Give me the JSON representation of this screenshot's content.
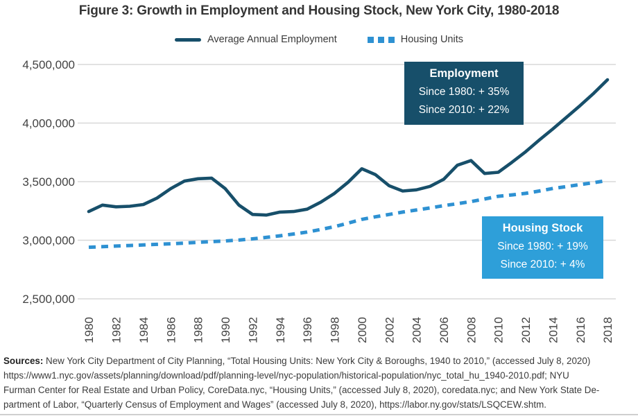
{
  "figure_title": "Figure 3: Growth in Employment and Housing Stock, New York City, 1980-2018",
  "chart_data": {
    "type": "line",
    "title": "Figure 3: Growth in Employment and Housing Stock, New York City, 1980-2018",
    "x": [
      1980,
      1981,
      1982,
      1983,
      1984,
      1985,
      1986,
      1987,
      1988,
      1989,
      1990,
      1991,
      1992,
      1993,
      1994,
      1995,
      1996,
      1997,
      1998,
      1999,
      2000,
      2001,
      2002,
      2003,
      2004,
      2005,
      2006,
      2007,
      2008,
      2009,
      2010,
      2011,
      2012,
      2013,
      2014,
      2015,
      2016,
      2017,
      2018
    ],
    "series": [
      {
        "name": "Average Annual Employment",
        "style": "solid",
        "color": "#174F6A",
        "values": [
          3245000,
          3300000,
          3285000,
          3290000,
          3305000,
          3360000,
          3440000,
          3505000,
          3525000,
          3530000,
          3440000,
          3300000,
          3220000,
          3215000,
          3240000,
          3245000,
          3265000,
          3325000,
          3400000,
          3495000,
          3610000,
          3560000,
          3465000,
          3420000,
          3430000,
          3460000,
          3520000,
          3640000,
          3680000,
          3570000,
          3580000,
          3665000,
          3755000,
          3855000,
          3950000,
          4050000,
          4150000,
          4255000,
          4370000
        ]
      },
      {
        "name": "Housing Units",
        "style": "dashed",
        "color": "#2E91D2",
        "values": [
          2940000,
          2945000,
          2950000,
          2955000,
          2960000,
          2965000,
          2970000,
          2976000,
          2982000,
          2988000,
          2994000,
          3002000,
          3012000,
          3024000,
          3038000,
          3053000,
          3070000,
          3092000,
          3116000,
          3146000,
          3178000,
          3200000,
          3220000,
          3240000,
          3258000,
          3276000,
          3295000,
          3312000,
          3330000,
          3352000,
          3375000,
          3387000,
          3400000,
          3420000,
          3442000,
          3458000,
          3475000,
          3492000,
          3510000
        ]
      }
    ],
    "xlabel": "",
    "ylabel": "",
    "ylim": [
      2500000,
      4500000
    ],
    "y_ticks": [
      "2,500,000",
      "3,000,000",
      "3,500,000",
      "4,000,000",
      "4,500,000"
    ],
    "x_tick_labels": [
      "1980",
      "1982",
      "1984",
      "1986",
      "1988",
      "1990",
      "1992",
      "1994",
      "1996",
      "1998",
      "2000",
      "2002",
      "2004",
      "2006",
      "2008",
      "2010",
      "2012",
      "2014",
      "2016",
      "2018"
    ],
    "grid": "horizontal",
    "grid_color": "#D8D8D8",
    "legend_position": "top",
    "annotations": {
      "employment": {
        "title": "Employment",
        "line1": "Since 1980: + 35%",
        "line2": "Since 2010: + 22%",
        "bg": "#174F6A"
      },
      "housing_stock": {
        "title": "Housing Stock",
        "line1": "Since 1980: + 19%",
        "line2": "Since 2010: + 4%",
        "bg": "#2E9FD9"
      }
    }
  },
  "sources": {
    "label": "Sources:",
    "line1_rest": "New York City Department of City Planning, “Total Housing Units: New York City & Boroughs, 1940 to 2010,” (accessed July 8, 2020)",
    "line2": "https://www1.nyc.gov/assets/planning/download/pdf/planning-level/nyc-population/historical-population/nyc_total_hu_1940-2010.pdf; NYU",
    "line3": "Furman Center for Real Estate and Urban Policy, CoreData.nyc, “Housing Units,” (accessed July 8, 2020), coredata.nyc; and New York State De-",
    "line4": "partment of Labor, “Quarterly Census of Employment and Wages” (accessed July 8, 2020), https://labor.ny.gov/stats/LSQCEW.shtm."
  }
}
